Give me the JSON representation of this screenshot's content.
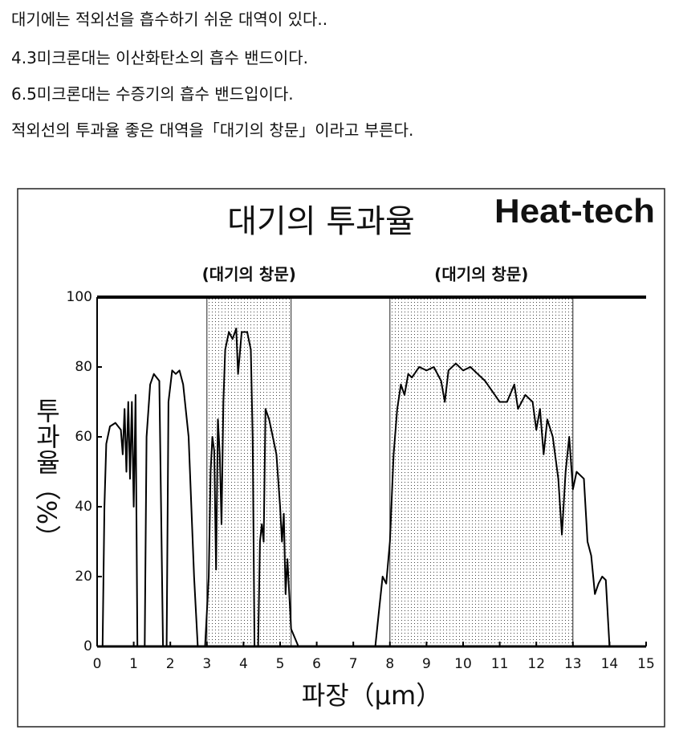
{
  "paragraphs": [
    "대기에는 적외선을 흡수하기 쉬운 대역이 있다..",
    "4.3미크론대는 이산화탄소의 흡수 밴드이다.",
    "6.5미크론대는 수증기의 흡수 밴드입이다.",
    "적외선의 투과율 좋은 대역을「대기의 창문」이라고 부른다."
  ],
  "chart_data": {
    "type": "line",
    "title": "대기의 투과율",
    "brand": "Heat-tech",
    "brand_color": "#e00000",
    "xlabel": "파장（μm）",
    "ylabel": "투과율（%）",
    "windows": [
      {
        "label": "(대기의 창문)",
        "range": [
          3,
          5.3
        ]
      },
      {
        "label": "(대기의 창문)",
        "range": [
          8,
          13
        ]
      }
    ],
    "xlim": [
      0,
      15
    ],
    "xticks": [
      0,
      1,
      2,
      3,
      4,
      5,
      6,
      7,
      8,
      9,
      10,
      11,
      12,
      13,
      14,
      15
    ],
    "ylim": [
      0,
      100
    ],
    "yticks": [
      0,
      20,
      40,
      60,
      80,
      100
    ],
    "color": "#000000",
    "x": [
      0.15,
      0.2,
      0.25,
      0.35,
      0.5,
      0.65,
      0.7,
      0.75,
      0.8,
      0.85,
      0.9,
      0.95,
      1.0,
      1.05,
      1.1,
      1.3,
      1.35,
      1.45,
      1.55,
      1.7,
      1.8,
      1.9,
      1.95,
      2.05,
      2.15,
      2.25,
      2.35,
      2.5,
      2.65,
      2.75,
      2.95,
      3.05,
      3.1,
      3.15,
      3.2,
      3.25,
      3.3,
      3.35,
      3.4,
      3.45,
      3.5,
      3.6,
      3.7,
      3.8,
      3.85,
      3.95,
      4.1,
      4.2,
      4.25,
      4.3,
      4.35,
      4.4,
      4.45,
      4.5,
      4.55,
      4.6,
      4.7,
      4.8,
      4.9,
      5.0,
      5.05,
      5.1,
      5.15,
      5.2,
      5.3,
      5.5,
      7.6,
      7.7,
      7.8,
      7.9,
      8.0,
      8.1,
      8.2,
      8.3,
      8.4,
      8.5,
      8.6,
      8.8,
      9.0,
      9.2,
      9.4,
      9.5,
      9.6,
      9.8,
      10.0,
      10.2,
      10.4,
      10.6,
      10.8,
      11.0,
      11.2,
      11.4,
      11.5,
      11.7,
      11.9,
      12.0,
      12.1,
      12.2,
      12.3,
      12.45,
      12.6,
      12.7,
      12.8,
      12.9,
      13.0,
      13.1,
      13.3,
      13.4,
      13.5,
      13.6,
      13.7,
      13.8,
      13.9,
      14.0
    ],
    "values": [
      0,
      40,
      58,
      63,
      64,
      62,
      55,
      68,
      50,
      70,
      48,
      70,
      40,
      72,
      0,
      0,
      60,
      75,
      78,
      76,
      0,
      0,
      70,
      79,
      78,
      79,
      75,
      60,
      20,
      0,
      0,
      20,
      50,
      60,
      56,
      22,
      65,
      55,
      35,
      70,
      85,
      90,
      88,
      91,
      78,
      90,
      90,
      85,
      60,
      0,
      0,
      0,
      30,
      35,
      30,
      68,
      65,
      60,
      55,
      40,
      30,
      38,
      15,
      25,
      5,
      0,
      0,
      10,
      20,
      18,
      30,
      55,
      68,
      75,
      72,
      78,
      77,
      80,
      79,
      80,
      76,
      70,
      79,
      81,
      79,
      80,
      78,
      76,
      73,
      70,
      70,
      75,
      68,
      72,
      70,
      62,
      68,
      55,
      65,
      60,
      48,
      32,
      50,
      60,
      45,
      50,
      48,
      30,
      26,
      15,
      18,
      20,
      19,
      0
    ]
  }
}
